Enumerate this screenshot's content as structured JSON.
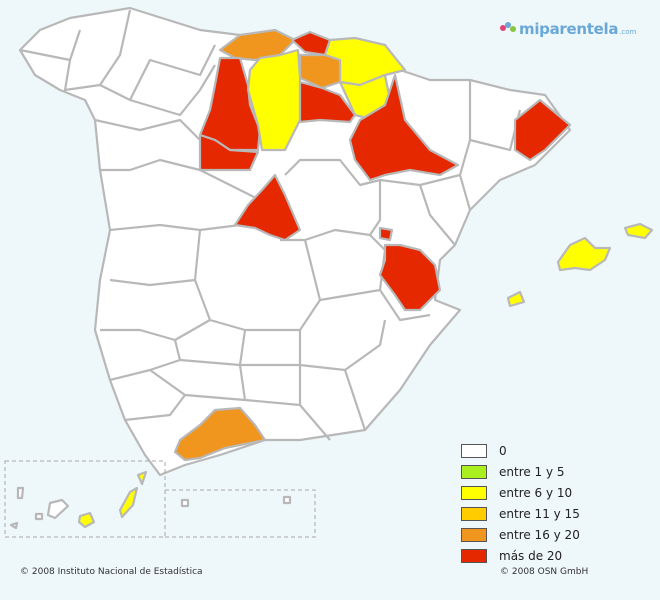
{
  "logo": {
    "text": "miparentela",
    "suffix": ".com"
  },
  "legend": [
    {
      "label": "0",
      "color": "#ffffff"
    },
    {
      "label": "entre 1 y 5",
      "color": "#aaf01e"
    },
    {
      "label": "entre 6 y 10",
      "color": "#ffff00"
    },
    {
      "label": "entre 11 y 15",
      "color": "#ffcc00"
    },
    {
      "label": "entre 16 y 20",
      "color": "#f0961e"
    },
    {
      "label": "más de 20",
      "color": "#e62800"
    }
  ],
  "footer": {
    "left": "© 2008 Instituto Nacional de Estadística",
    "right": "© 2008 OSN GmbH"
  },
  "colors": {
    "background": "#eef7fa",
    "border": "#b8b8b8",
    "white": "#ffffff",
    "yellow": "#ffff00",
    "orange": "#f0961e",
    "red": "#e62800"
  }
}
